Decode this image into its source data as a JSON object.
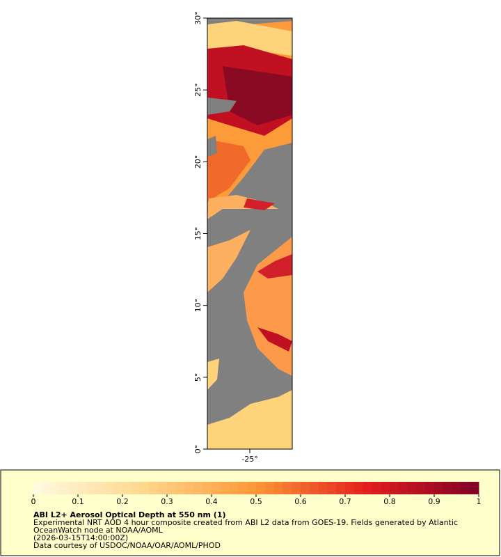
{
  "map": {
    "xlim": [
      -28,
      -22
    ],
    "ylim": [
      0,
      30
    ],
    "xticks": [
      {
        "value": -25,
        "label": "-25°"
      }
    ],
    "yticks": [
      {
        "value": 0,
        "label": "0°"
      },
      {
        "value": 5,
        "label": "5°"
      },
      {
        "value": 10,
        "label": "10°"
      },
      {
        "value": 15,
        "label": "15°"
      },
      {
        "value": 20,
        "label": "20°"
      },
      {
        "value": 25,
        "label": "25°"
      },
      {
        "value": 30,
        "label": "30°"
      }
    ]
  },
  "colorbar": {
    "lim": [
      0,
      1
    ],
    "ticks": [
      0,
      0.1,
      0.2,
      0.3,
      0.4,
      0.5,
      0.6,
      0.7,
      0.8,
      0.9,
      1
    ]
  },
  "legend": {
    "title": "ABI L2+ Aerosol Optical Depth at 550 nm (1)",
    "lines": [
      "Experimental NRT AOD 4 hour composite created from ABI L2 data from GOES-19. Fields generated by Atlantic",
      "OceanWatch node at NOAA/AOML",
      "(2026-03-15T14:00:00Z)",
      "Data courtesy of USDOC/NOAA/OAR/AOML/PHOD"
    ]
  }
}
